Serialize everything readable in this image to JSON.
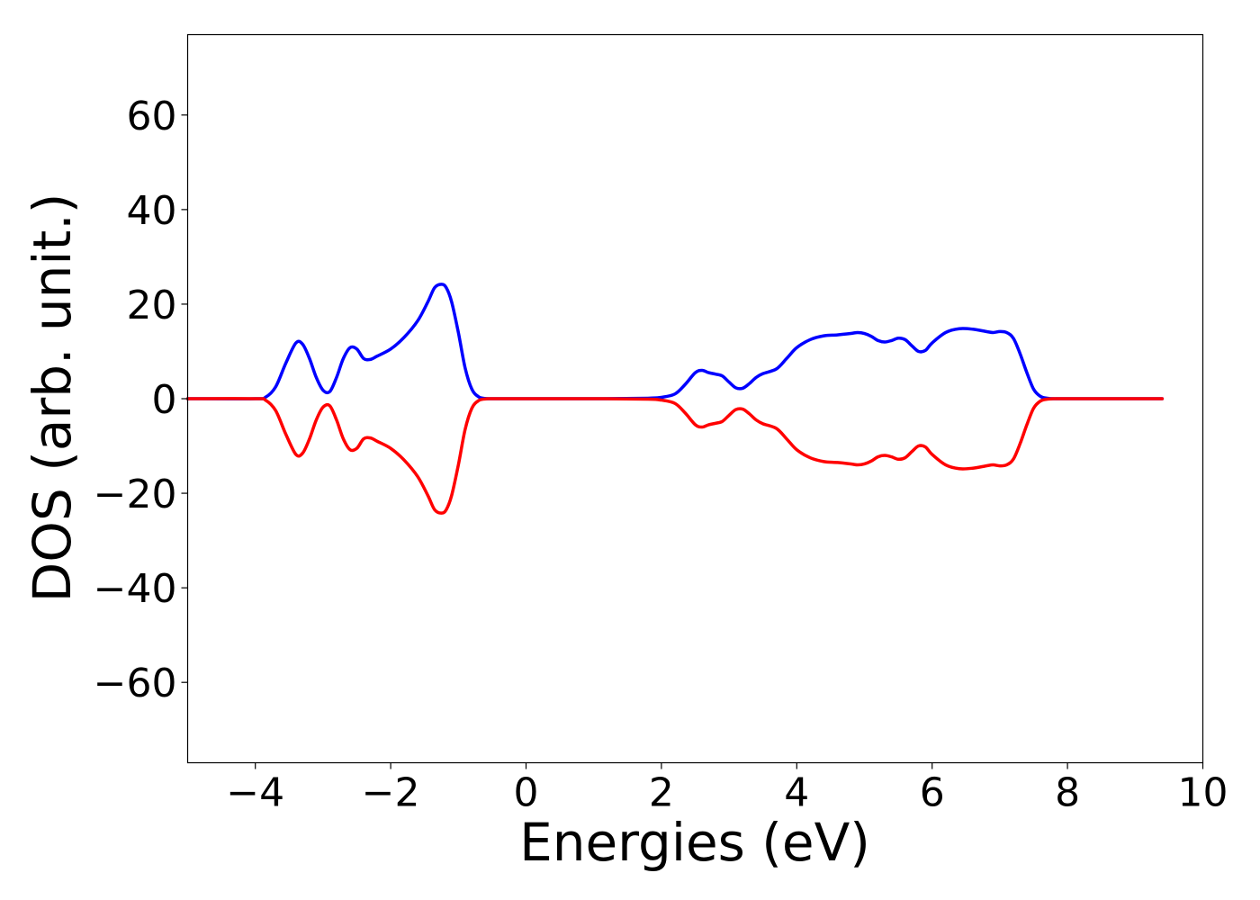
{
  "chart_data": {
    "type": "line",
    "xlabel": "Energies (eV)",
    "ylabel": "DOS (arb. unit.)",
    "xlim": [
      -5,
      10
    ],
    "ylim": [
      -77,
      77
    ],
    "xticks": [
      -4,
      -2,
      0,
      2,
      4,
      6,
      8,
      10
    ],
    "xtick_labels": [
      "−4",
      "−2",
      "0",
      "2",
      "4",
      "6",
      "8",
      "10"
    ],
    "yticks": [
      -60,
      -40,
      -20,
      0,
      20,
      40,
      60
    ],
    "ytick_labels": [
      "−60",
      "−40",
      "−20",
      "0",
      "20",
      "40",
      "60"
    ],
    "grid": false,
    "legend": "none",
    "series": [
      {
        "color": "#0000ff",
        "x": [
          -5.0,
          -4.0,
          -3.85,
          -3.7,
          -3.55,
          -3.4,
          -3.3,
          -3.2,
          -3.1,
          -3.0,
          -2.9,
          -2.8,
          -2.7,
          -2.6,
          -2.5,
          -2.4,
          -2.3,
          -2.2,
          -2.0,
          -1.8,
          -1.6,
          -1.45,
          -1.35,
          -1.25,
          -1.18,
          -1.1,
          -1.0,
          -0.9,
          -0.8,
          -0.7,
          -0.6,
          -0.5,
          0.0,
          1.0,
          1.8,
          2.0,
          2.2,
          2.35,
          2.5,
          2.6,
          2.7,
          2.8,
          2.9,
          3.0,
          3.1,
          3.2,
          3.3,
          3.4,
          3.5,
          3.7,
          3.85,
          4.0,
          4.2,
          4.4,
          4.6,
          4.8,
          4.9,
          5.0,
          5.1,
          5.2,
          5.3,
          5.4,
          5.5,
          5.6,
          5.7,
          5.8,
          5.9,
          6.0,
          6.2,
          6.4,
          6.6,
          6.8,
          6.9,
          7.0,
          7.1,
          7.2,
          7.3,
          7.4,
          7.5,
          7.6,
          7.7,
          7.8,
          8.0,
          9.4
        ],
        "y": [
          0,
          0,
          0.3,
          2.5,
          7.5,
          11.8,
          11.5,
          8.5,
          4.5,
          1.8,
          1.5,
          4.5,
          8.5,
          10.8,
          10.5,
          8.5,
          8.3,
          9.0,
          10.5,
          13.0,
          16.5,
          20.5,
          23.5,
          24.2,
          23.5,
          20.5,
          14.0,
          6.5,
          2.0,
          0.4,
          0.05,
          0,
          0,
          0,
          0.1,
          0.3,
          1.0,
          3.0,
          5.5,
          6.0,
          5.5,
          5.2,
          4.8,
          3.5,
          2.3,
          2.2,
          3.2,
          4.5,
          5.3,
          6.3,
          8.5,
          10.8,
          12.5,
          13.3,
          13.5,
          13.8,
          14.0,
          13.8,
          13.2,
          12.3,
          12.0,
          12.3,
          12.8,
          12.5,
          11.2,
          10.0,
          10.2,
          11.8,
          14.0,
          14.8,
          14.7,
          14.2,
          14.0,
          14.2,
          14.0,
          12.8,
          9.5,
          5.5,
          2.0,
          0.5,
          0.1,
          0,
          0,
          0
        ]
      },
      {
        "color": "#ff0000",
        "x": [
          -5.0,
          -4.0,
          -3.85,
          -3.7,
          -3.55,
          -3.4,
          -3.3,
          -3.2,
          -3.1,
          -3.0,
          -2.9,
          -2.8,
          -2.7,
          -2.6,
          -2.5,
          -2.4,
          -2.3,
          -2.2,
          -2.0,
          -1.8,
          -1.6,
          -1.45,
          -1.35,
          -1.25,
          -1.18,
          -1.1,
          -1.0,
          -0.9,
          -0.8,
          -0.7,
          -0.6,
          -0.5,
          0.0,
          1.0,
          1.8,
          2.0,
          2.2,
          2.35,
          2.5,
          2.6,
          2.7,
          2.8,
          2.9,
          3.0,
          3.1,
          3.2,
          3.3,
          3.4,
          3.5,
          3.7,
          3.85,
          4.0,
          4.2,
          4.4,
          4.6,
          4.8,
          4.9,
          5.0,
          5.1,
          5.2,
          5.3,
          5.4,
          5.5,
          5.6,
          5.7,
          5.8,
          5.9,
          6.0,
          6.2,
          6.4,
          6.6,
          6.8,
          6.9,
          7.0,
          7.1,
          7.2,
          7.3,
          7.4,
          7.5,
          7.6,
          7.7,
          7.8,
          8.0,
          9.4
        ],
        "y": [
          0,
          0,
          -0.3,
          -2.5,
          -7.5,
          -11.8,
          -11.5,
          -8.5,
          -4.5,
          -1.8,
          -1.5,
          -4.5,
          -8.5,
          -10.8,
          -10.5,
          -8.5,
          -8.3,
          -9.0,
          -10.5,
          -13.0,
          -16.5,
          -20.5,
          -23.5,
          -24.2,
          -23.5,
          -20.5,
          -14.0,
          -6.5,
          -2.0,
          -0.4,
          -0.05,
          0,
          0,
          0,
          -0.1,
          -0.3,
          -1.0,
          -3.0,
          -5.5,
          -6.0,
          -5.5,
          -5.2,
          -4.8,
          -3.5,
          -2.3,
          -2.2,
          -3.2,
          -4.5,
          -5.3,
          -6.3,
          -8.5,
          -10.8,
          -12.5,
          -13.3,
          -13.5,
          -13.8,
          -14.0,
          -13.8,
          -13.2,
          -12.3,
          -12.0,
          -12.3,
          -12.8,
          -12.5,
          -11.2,
          -10.0,
          -10.2,
          -11.8,
          -14.0,
          -14.8,
          -14.7,
          -14.2,
          -14.0,
          -14.2,
          -14.0,
          -12.8,
          -9.5,
          -5.5,
          -2.0,
          -0.5,
          -0.1,
          0,
          0,
          0
        ]
      }
    ]
  }
}
